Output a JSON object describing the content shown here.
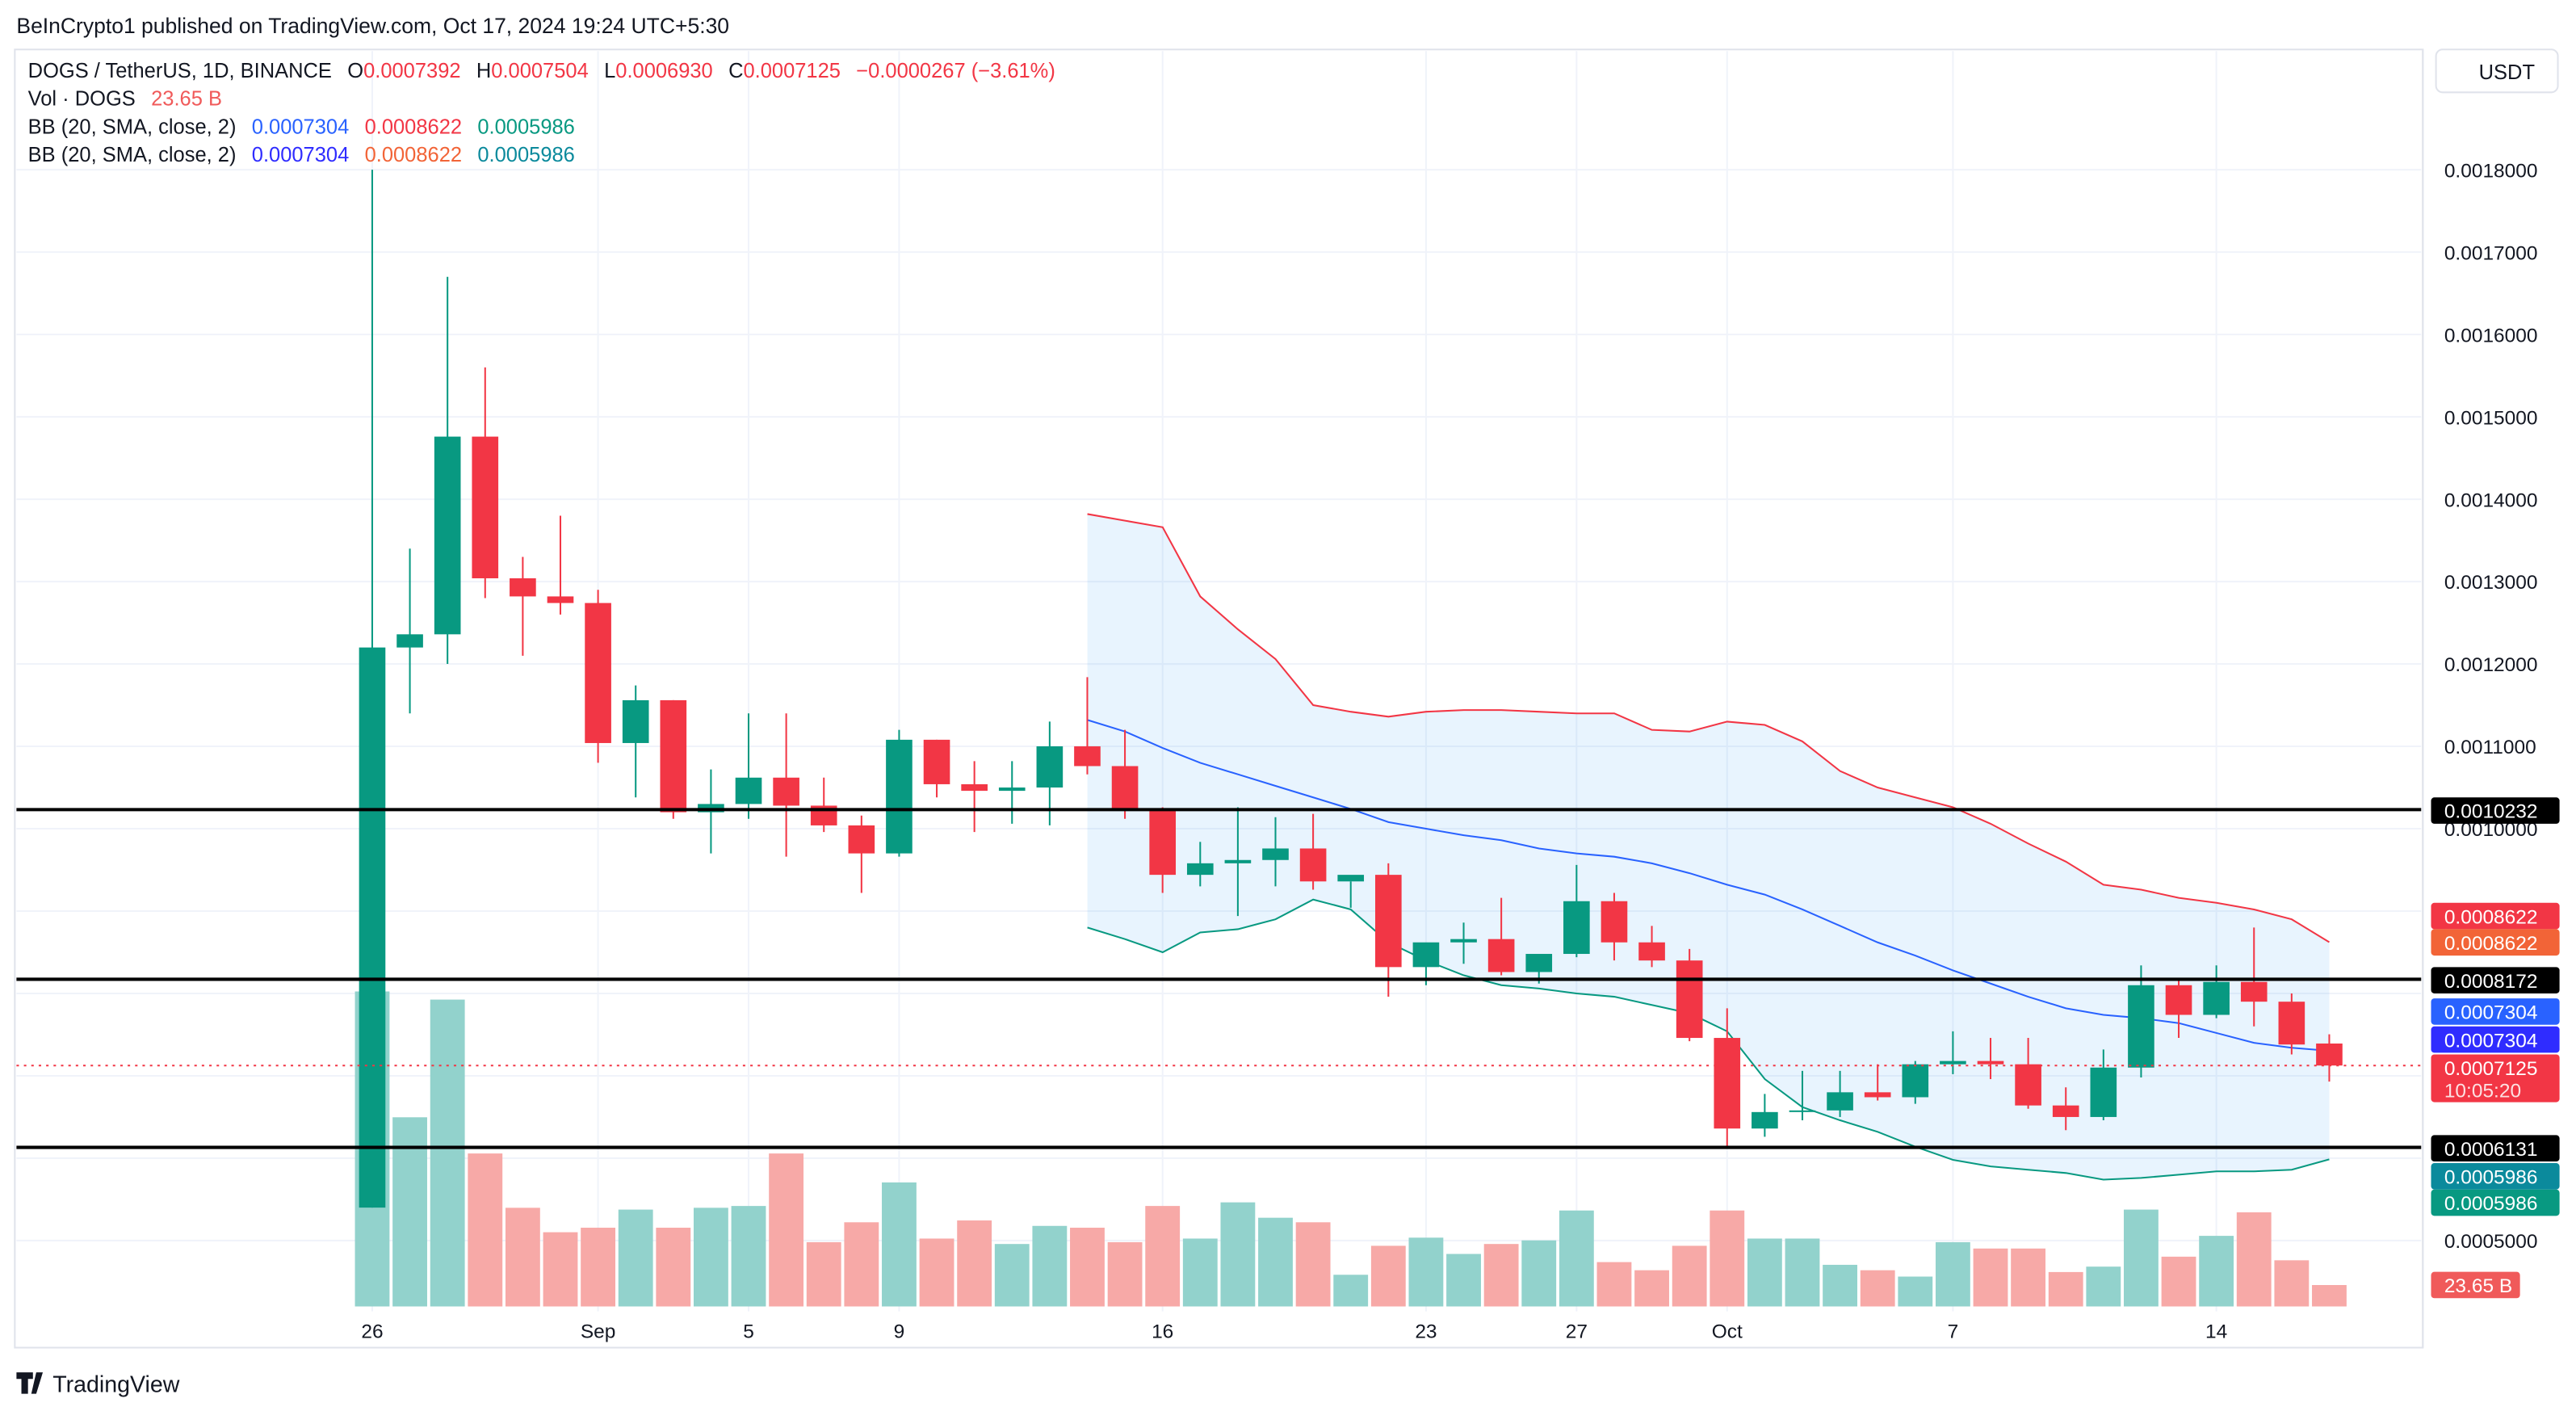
{
  "published": "BeInCrypto1 published on TradingView.com, Oct 17, 2024 19:24 UTC+5:30",
  "legend": {
    "symbol": "DOGS / TetherUS, 1D, BINANCE",
    "o_label": "O",
    "o": "0.0007392",
    "h_label": "H",
    "h": "0.0007504",
    "l_label": "L",
    "l": "0.0006930",
    "c_label": "C",
    "c": "0.0007125",
    "change": "−0.0000267 (−3.61%)",
    "vol_label": "Vol · DOGS",
    "vol": "23.65 B",
    "bb1_label": "BB (20, SMA, close, 2)",
    "bb1_mid": "0.0007304",
    "bb1_up": "0.0008622",
    "bb1_low": "0.0005986",
    "bb2_label": "BB (20, SMA, close, 2)",
    "bb2_mid": "0.0007304",
    "bb2_up": "0.0008622",
    "bb2_low": "0.0005986"
  },
  "currency_button": "USDT",
  "footer_logo": "TradingView",
  "colors": {
    "up": "#089981",
    "down": "#f23645",
    "bb_upper": "#f23645",
    "bb_middle": "#2962ff",
    "bb_lower": "#089981",
    "bb_fill": "#2196f3",
    "level_line": "#000000"
  },
  "chart_data": {
    "type": "candlestick",
    "title": "DOGS / TetherUS, 1D, BINANCE",
    "ylim": [
      0.00042,
      0.00186
    ],
    "grid": true,
    "y_ticks": [
      "0.0018000",
      "0.0017000",
      "0.0016000",
      "0.0015000",
      "0.0014000",
      "0.0013000",
      "0.0012000",
      "0.0011000",
      "0.0010000",
      "0.0005000"
    ],
    "x_ticks": [
      {
        "day": 0,
        "label": "26"
      },
      {
        "day": 6,
        "label": "Sep"
      },
      {
        "day": 10,
        "label": "5"
      },
      {
        "day": 14,
        "label": "9"
      },
      {
        "day": 21,
        "label": "16"
      },
      {
        "day": 28,
        "label": "23"
      },
      {
        "day": 32,
        "label": "27"
      },
      {
        "day": 36,
        "label": "Oct"
      },
      {
        "day": 42,
        "label": "7"
      },
      {
        "day": 49,
        "label": "14"
      }
    ],
    "first_date": "Aug 26",
    "ohlc": [
      [
        0.00054,
        0.0018,
        0.00054,
        0.00122
      ],
      [
        0.00122,
        0.00134,
        0.00114,
        0.001236
      ],
      [
        0.001236,
        0.00167,
        0.0012,
        0.001476
      ],
      [
        0.001476,
        0.00156,
        0.00128,
        0.001304
      ],
      [
        0.001304,
        0.00133,
        0.00121,
        0.001282
      ],
      [
        0.001282,
        0.00138,
        0.00126,
        0.001274
      ],
      [
        0.001274,
        0.00129,
        0.00108,
        0.001104
      ],
      [
        0.001104,
        0.001174,
        0.001038,
        0.001156
      ],
      [
        0.001156,
        0.001156,
        0.001012,
        0.00102
      ],
      [
        0.00102,
        0.001072,
        0.00097,
        0.00103
      ],
      [
        0.00103,
        0.00114,
        0.001012,
        0.001062
      ],
      [
        0.001062,
        0.00114,
        0.000966,
        0.001028
      ],
      [
        0.001028,
        0.001062,
        0.000996,
        0.001004
      ],
      [
        0.001004,
        0.001016,
        0.000922,
        0.00097
      ],
      [
        0.00097,
        0.00112,
        0.000966,
        0.001108
      ],
      [
        0.001108,
        0.001108,
        0.001038,
        0.001054
      ],
      [
        0.001054,
        0.001082,
        0.000996,
        0.001046
      ],
      [
        0.001046,
        0.001082,
        0.001006,
        0.00105
      ],
      [
        0.00105,
        0.00113,
        0.001004,
        0.0011
      ],
      [
        0.0011,
        0.001184,
        0.001066,
        0.001076
      ],
      [
        0.001076,
        0.00112,
        0.001012,
        0.001022
      ],
      [
        0.001022,
        0.001026,
        0.000922,
        0.000944
      ],
      [
        0.000944,
        0.000984,
        0.00093,
        0.000958
      ],
      [
        0.000958,
        0.001026,
        0.000894,
        0.000962
      ],
      [
        0.000962,
        0.001014,
        0.00093,
        0.000976
      ],
      [
        0.000976,
        0.001018,
        0.000926,
        0.000936
      ],
      [
        0.000936,
        0.000936,
        0.000904,
        0.000944
      ],
      [
        0.000944,
        0.000958,
        0.000796,
        0.000832
      ],
      [
        0.000832,
        0.000848,
        0.00081,
        0.000862
      ],
      [
        0.000862,
        0.000886,
        0.000836,
        0.000866
      ],
      [
        0.000866,
        0.000916,
        0.000822,
        0.000826
      ],
      [
        0.000826,
        0.000842,
        0.000812,
        0.000848
      ],
      [
        0.000848,
        0.000956,
        0.000844,
        0.000912
      ],
      [
        0.000912,
        0.000922,
        0.00084,
        0.000862
      ],
      [
        0.000862,
        0.000882,
        0.000832,
        0.00084
      ],
      [
        0.00084,
        0.000854,
        0.000742,
        0.000746
      ],
      [
        0.000746,
        0.000782,
        0.000612,
        0.000636
      ],
      [
        0.000636,
        0.000678,
        0.000626,
        0.000656
      ],
      [
        0.000656,
        0.000706,
        0.000646,
        0.000658
      ],
      [
        0.000658,
        0.000706,
        0.00065,
        0.00068
      ],
      [
        0.00068,
        0.000714,
        0.00067,
        0.000674
      ],
      [
        0.000674,
        0.000718,
        0.000666,
        0.000714
      ],
      [
        0.000714,
        0.000754,
        0.000702,
        0.000718
      ],
      [
        0.000718,
        0.000746,
        0.000696,
        0.000714
      ],
      [
        0.000714,
        0.000746,
        0.00066,
        0.000664
      ],
      [
        0.000664,
        0.000686,
        0.000634,
        0.00065
      ],
      [
        0.00065,
        0.000732,
        0.000646,
        0.00071
      ],
      [
        0.00071,
        0.000834,
        0.000698,
        0.00081
      ],
      [
        0.00081,
        0.000818,
        0.000746,
        0.000774
      ],
      [
        0.000774,
        0.000834,
        0.00077,
        0.000814
      ],
      [
        0.000814,
        0.00088,
        0.00076,
        0.00079
      ],
      [
        0.00079,
        0.0008,
        0.000726,
        0.000738
      ],
      [
        0.0007392,
        0.0007504,
        0.000693,
        0.0007125
      ]
    ],
    "volume_b": [
      348,
      209,
      339,
      169,
      109,
      82,
      87,
      107,
      87,
      109,
      111,
      169,
      71,
      93,
      137,
      75,
      95,
      69,
      89,
      87,
      71,
      111,
      75,
      115,
      98,
      93,
      35,
      67,
      76,
      58,
      69,
      73,
      106,
      49,
      40,
      67,
      106,
      75,
      75,
      46,
      40,
      33,
      71,
      64,
      64,
      38,
      44,
      107,
      55,
      78,
      104,
      51,
      23.65
    ],
    "bollinger": {
      "label": "BB (20, SMA, close, 2)",
      "start_day": 19,
      "upper": [
        0.001382,
        0.001374,
        0.001366,
        0.001282,
        0.001242,
        0.001206,
        0.00115,
        0.001142,
        0.001136,
        0.001142,
        0.001144,
        0.001144,
        0.001142,
        0.00114,
        0.00114,
        0.00112,
        0.001118,
        0.00113,
        0.001126,
        0.001106,
        0.00107,
        0.00105,
        0.001038,
        0.001026,
        0.001006,
        0.000982,
        0.00096,
        0.000932,
        0.000926,
        0.000916,
        0.00091,
        0.000902,
        0.00089,
        0.0008622
      ],
      "middle": [
        0.001132,
        0.001118,
        0.001098,
        0.00108,
        0.001066,
        0.001052,
        0.001038,
        0.001024,
        0.001008,
        0.001,
        0.000992,
        0.000986,
        0.000976,
        0.00097,
        0.000966,
        0.000958,
        0.000946,
        0.000932,
        0.00092,
        0.000902,
        0.000882,
        0.000862,
        0.000846,
        0.000828,
        0.000812,
        0.000796,
        0.000782,
        0.000774,
        0.00077,
        0.000764,
        0.000752,
        0.00074,
        0.000734,
        0.0007304
      ],
      "lower": [
        0.00088,
        0.000866,
        0.00085,
        0.000874,
        0.000878,
        0.00089,
        0.000914,
        0.000902,
        0.000862,
        0.00084,
        0.000822,
        0.00081,
        0.000806,
        0.0008,
        0.000796,
        0.000786,
        0.000776,
        0.000754,
        0.000696,
        0.000662,
        0.000646,
        0.000632,
        0.000614,
        0.000598,
        0.00059,
        0.000586,
        0.000582,
        0.000574,
        0.000576,
        0.00058,
        0.000584,
        0.000584,
        0.000586,
        0.0005986
      ]
    },
    "horizontal_levels": [
      "0.0010232",
      "0.0008172",
      "0.0006131"
    ],
    "last_price": "0.0007125",
    "countdown": "10:05:20",
    "price_badges": [
      {
        "value": "0.0010232",
        "color": "#000000"
      },
      {
        "value": "0.0008622",
        "color": "#f23645"
      },
      {
        "value": "0.0008622",
        "color": "#f26437"
      },
      {
        "value": "0.0008172",
        "color": "#000000"
      },
      {
        "value": "0.0007304",
        "color": "#2962ff"
      },
      {
        "value": "0.0007304",
        "color": "#2f2cff"
      },
      {
        "value": "0.0006131",
        "color": "#000000"
      },
      {
        "value": "0.0005986",
        "color": "#0b8a9c"
      },
      {
        "value": "0.0005986",
        "color": "#089981"
      }
    ],
    "volume_badge": "23.65 B"
  }
}
